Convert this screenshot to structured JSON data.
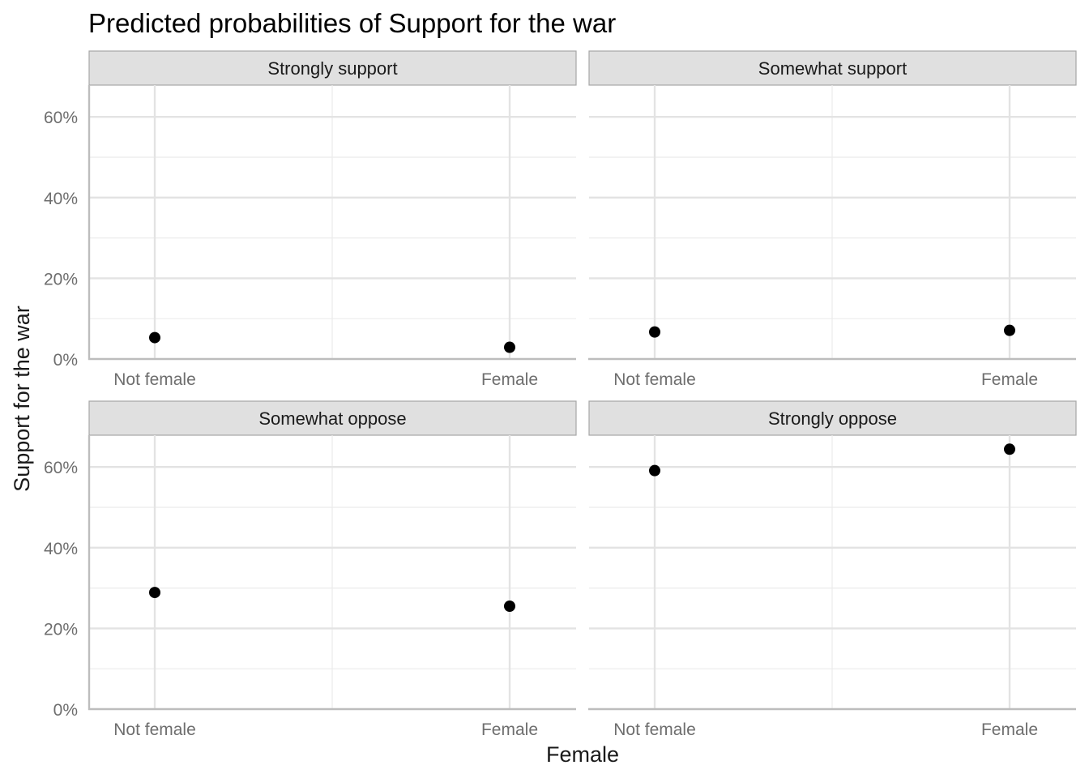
{
  "chart_data": {
    "type": "scatter",
    "title": "Predicted probabilities of Support for the war",
    "xlabel": "Female",
    "ylabel": "Support for the war",
    "categories": [
      "Not female",
      "Female"
    ],
    "y_ticks": [
      "0%",
      "20%",
      "40%",
      "60%"
    ],
    "ylim": [
      0,
      0.66
    ],
    "grid": true,
    "facets": [
      {
        "name": "Strongly support",
        "values": [
          0.053,
          0.029
        ]
      },
      {
        "name": "Somewhat support",
        "values": [
          0.067,
          0.071
        ]
      },
      {
        "name": "Somewhat oppose",
        "values": [
          0.289,
          0.255
        ]
      },
      {
        "name": "Strongly oppose",
        "values": [
          0.591,
          0.644
        ]
      }
    ],
    "point_color": "#000000",
    "strip_fill": "#e0e0e0"
  }
}
